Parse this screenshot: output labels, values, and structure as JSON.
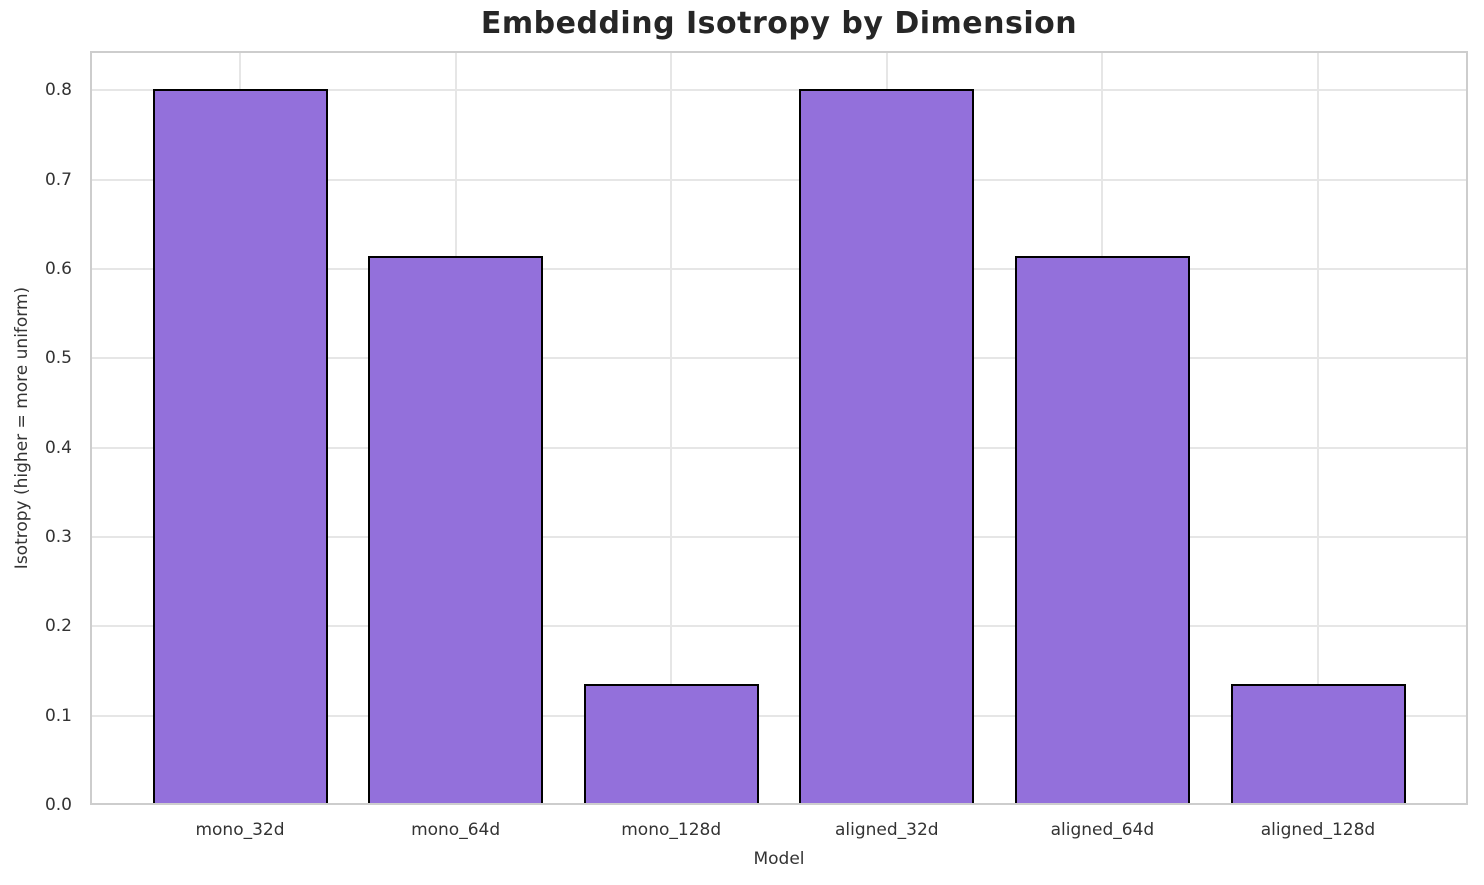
{
  "chart_data": {
    "type": "bar",
    "title": "Embedding Isotropy by Dimension",
    "xlabel": "Model",
    "ylabel": "Isotropy (higher = more uniform)",
    "categories": [
      "mono_32d",
      "mono_64d",
      "mono_128d",
      "aligned_32d",
      "aligned_64d",
      "aligned_128d"
    ],
    "values": [
      0.802,
      0.614,
      0.135,
      0.802,
      0.614,
      0.135
    ],
    "ylim": [
      0,
      0.844
    ],
    "y_tick_labels": [
      "0.0",
      "0.1",
      "0.2",
      "0.3",
      "0.4",
      "0.5",
      "0.6",
      "0.7",
      "0.8"
    ],
    "grid": true,
    "legend_position": "none",
    "colors": {
      "bar_fill": "#9370DB",
      "bar_edge": "#000000",
      "grid_line": "#e6e6e6",
      "spine": "#cdcdcd",
      "tick_text": "#333333",
      "title_text": "#262626"
    }
  }
}
